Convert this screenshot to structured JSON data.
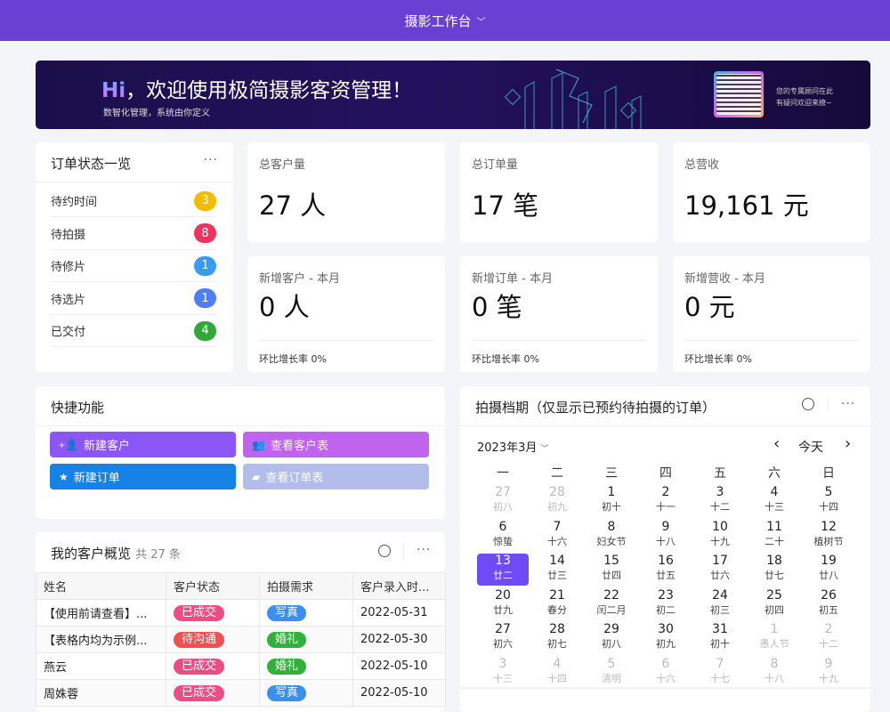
{
  "topbar": {
    "title": "摄影工作台",
    "chevron": "chevron-down-icon"
  },
  "banner": {
    "hi": "Hi",
    "title": "，欢迎使用极简摄影客资管理！",
    "subtitle": "数智化管理，系统由你定义",
    "qr_text1": "您的专属顾问在此",
    "qr_text2": "有疑问欢迎来撩~"
  },
  "order_status": {
    "title": "订单状态一览",
    "more": "···",
    "items": [
      {
        "label": "待约时间",
        "count": "3",
        "color": "#f5bb00"
      },
      {
        "label": "待拍摄",
        "count": "8",
        "color": "#f0335e"
      },
      {
        "label": "待修片",
        "count": "1",
        "color": "#3a9bf6"
      },
      {
        "label": "待选片",
        "count": "1",
        "color": "#4f7ef5"
      },
      {
        "label": "已交付",
        "count": "4",
        "color": "#32a83a"
      }
    ]
  },
  "stats": [
    {
      "label": "总客户量",
      "value": "27 人"
    },
    {
      "label": "总订单量",
      "value": "17 笔"
    },
    {
      "label": "总营收",
      "value": "19,161 元"
    },
    {
      "label": "新增客户 - 本月",
      "value": "0 人",
      "foot": "环比增长率 0%"
    },
    {
      "label": "新增订单 - 本月",
      "value": "0 笔",
      "foot": "环比增长率 0%"
    },
    {
      "label": "新增营收 - 本月",
      "value": "0 元",
      "foot": "环比增长率 0%"
    }
  ],
  "quick": {
    "title": "快捷功能",
    "buttons": [
      {
        "label": "新建客户",
        "icon": "add-user-icon",
        "color": "#8c55f6"
      },
      {
        "label": "查看客户表",
        "icon": "users-icon",
        "color": "#c063ee"
      },
      {
        "label": "新建订单",
        "icon": "star-icon",
        "color": "#1682e6"
      },
      {
        "label": "查看订单表",
        "icon": "briefcase-icon",
        "color": "#b3bdec"
      }
    ]
  },
  "calendar": {
    "title": "拍摄档期（仅显示已预约待拍摄的订单）",
    "month": "2023年3月",
    "today": "今天",
    "prev": "‹",
    "next": "›",
    "weekdays": [
      "一",
      "二",
      "三",
      "四",
      "五",
      "六",
      "日"
    ],
    "days": [
      [
        "27",
        "初八",
        1
      ],
      [
        "28",
        "初九",
        1
      ],
      [
        "1",
        "初十",
        0
      ],
      [
        "2",
        "十一",
        0
      ],
      [
        "3",
        "十二",
        0
      ],
      [
        "4",
        "十三",
        0
      ],
      [
        "5",
        "十四",
        0
      ],
      [
        "6",
        "惊蛰",
        0
      ],
      [
        "7",
        "十六",
        0
      ],
      [
        "8",
        "妇女节",
        0
      ],
      [
        "9",
        "十八",
        0
      ],
      [
        "10",
        "十九",
        0
      ],
      [
        "11",
        "二十",
        0
      ],
      [
        "12",
        "植树节",
        0
      ],
      [
        "13",
        "廿二",
        2
      ],
      [
        "14",
        "廿三",
        0
      ],
      [
        "15",
        "廿四",
        0
      ],
      [
        "16",
        "廿五",
        0
      ],
      [
        "17",
        "廿六",
        0
      ],
      [
        "18",
        "廿七",
        0
      ],
      [
        "19",
        "廿八",
        0
      ],
      [
        "20",
        "廿九",
        0
      ],
      [
        "21",
        "春分",
        0
      ],
      [
        "22",
        "闰二月",
        0
      ],
      [
        "23",
        "初二",
        0
      ],
      [
        "24",
        "初三",
        0
      ],
      [
        "25",
        "初四",
        0
      ],
      [
        "26",
        "初五",
        0
      ],
      [
        "27",
        "初六",
        0
      ],
      [
        "28",
        "初七",
        0
      ],
      [
        "29",
        "初八",
        0
      ],
      [
        "30",
        "初九",
        0
      ],
      [
        "31",
        "初十",
        0
      ],
      [
        "1",
        "愚人节",
        1
      ],
      [
        "2",
        "十二",
        1
      ],
      [
        "3",
        "十三",
        1
      ],
      [
        "4",
        "十四",
        1
      ],
      [
        "5",
        "清明",
        1
      ],
      [
        "6",
        "十六",
        1
      ],
      [
        "7",
        "十七",
        1
      ],
      [
        "8",
        "十八",
        1
      ],
      [
        "9",
        "十九",
        1
      ]
    ]
  },
  "customers": {
    "title": "我的客户概览",
    "count": "共 27 条",
    "more": "···",
    "columns": [
      "姓名",
      "客户状态",
      "拍摄需求",
      "客户录入时..."
    ],
    "rows": [
      [
        "【使用前请查看】...",
        "已成交",
        "写真",
        "2022-05-31"
      ],
      [
        "【表格内均为示例...",
        "待沟通",
        "婚礼",
        "2022-05-30"
      ],
      [
        "燕云",
        "已成交",
        "婚礼",
        "2022-05-10"
      ],
      [
        "周姝蓉",
        "已成交",
        "写真",
        "2022-05-10"
      ]
    ],
    "tag_colors": {
      "已成交": "#ee4d84",
      "待沟通": "#f0504f",
      "写真": "#3b8ff0",
      "婚礼": "#2fb13a"
    }
  }
}
